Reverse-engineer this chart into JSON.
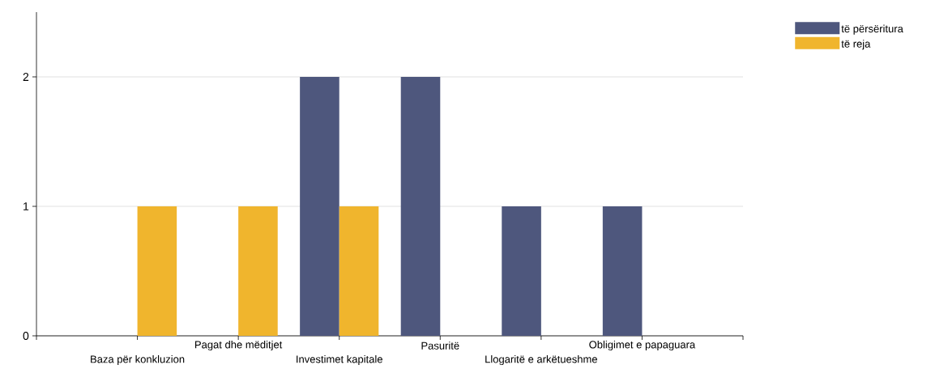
{
  "chart_data": {
    "type": "bar",
    "categories": [
      "Baza për konkluzion",
      "Pagat dhe mëditjet",
      "Investimet kapitale",
      "Pasuritë",
      "Llogaritë e arkëtueshme",
      "Obligimet e papaguara"
    ],
    "series": [
      {
        "name": "të përsëritura",
        "color": "#4e577d",
        "values": [
          0,
          0,
          2,
          2,
          1,
          1
        ]
      },
      {
        "name": "të reja",
        "color": "#f0b52d",
        "values": [
          1,
          1,
          1,
          0,
          0,
          0
        ]
      }
    ],
    "ylim": [
      0,
      2.5
    ],
    "yticks": [
      0,
      1,
      2
    ],
    "grid": "y",
    "legend": "top right"
  }
}
